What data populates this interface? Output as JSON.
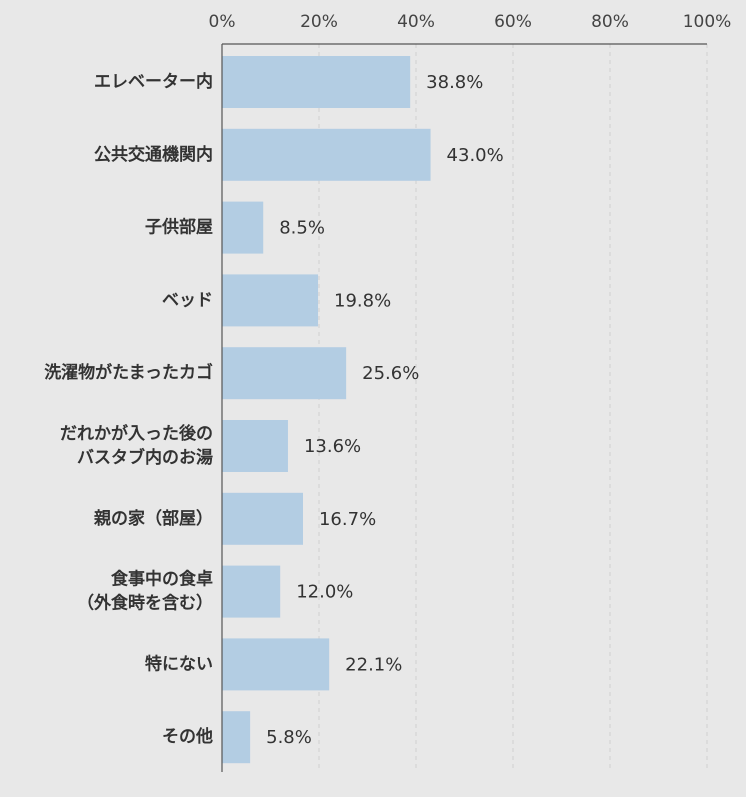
{
  "chart_data": {
    "type": "bar",
    "orientation": "horizontal",
    "categories": [
      "エレベーター内",
      "公共交通機関内",
      "子供部屋",
      "ベッド",
      "洗濯物がたまったカゴ",
      "だれかが入った後の\nバスタブ内のお湯",
      "親の家（部屋）",
      "食事中の食卓\n（外食時を含む）",
      "特にない",
      "その他"
    ],
    "values": [
      38.8,
      43.0,
      8.5,
      19.8,
      25.6,
      13.6,
      16.7,
      12.0,
      22.1,
      5.8
    ],
    "value_labels": [
      "38.8%",
      "43.0%",
      "8.5%",
      "19.8%",
      "25.6%",
      "13.6%",
      "16.7%",
      "12.0%",
      "22.1%",
      "5.8%"
    ],
    "color": "#b3cde3",
    "xlim": [
      0,
      100
    ],
    "xticks": [
      {
        "value": 0,
        "label": "0%"
      },
      {
        "value": 20,
        "label": "20%"
      },
      {
        "value": 40,
        "label": "40%"
      },
      {
        "value": 60,
        "label": "60%"
      },
      {
        "value": 80,
        "label": "80%"
      },
      {
        "value": 100,
        "label": "100%"
      }
    ],
    "grid": true
  }
}
